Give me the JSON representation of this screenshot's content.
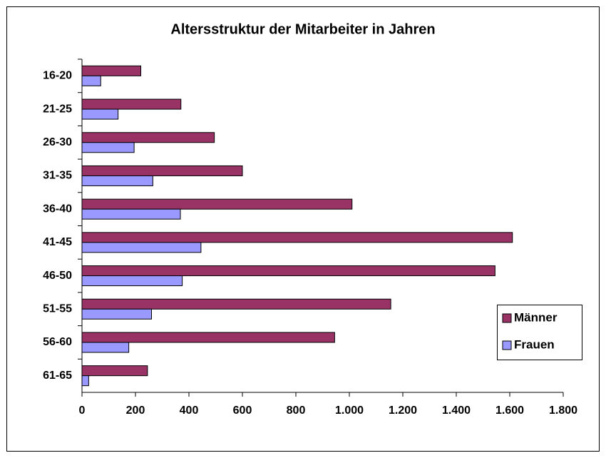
{
  "chart_data": {
    "type": "barh",
    "title": "Altersstruktur der Mitarbeiter in Jahren",
    "categories": [
      "16-20",
      "21-25",
      "26-30",
      "31-35",
      "36-40",
      "41-45",
      "46-50",
      "51-55",
      "56-60",
      "61-65"
    ],
    "series": [
      {
        "name": "Männer",
        "color": "#993366",
        "values": [
          220,
          370,
          495,
          600,
          1010,
          1610,
          1545,
          1155,
          945,
          245
        ]
      },
      {
        "name": "Frauen",
        "color": "#9999ff",
        "values": [
          70,
          135,
          195,
          265,
          368,
          445,
          375,
          260,
          175,
          25
        ]
      }
    ],
    "xlim": [
      0,
      1800
    ],
    "xticks": [
      0,
      200,
      400,
      600,
      800,
      {
        "value": 1000,
        "label": "1.000"
      },
      {
        "value": 1200,
        "label": "1.200"
      },
      {
        "value": 1400,
        "label": "1.400"
      },
      {
        "value": 1600,
        "label": "1.600"
      },
      {
        "value": 1800,
        "label": "1.800"
      }
    ],
    "grid": false,
    "legend": "right"
  }
}
